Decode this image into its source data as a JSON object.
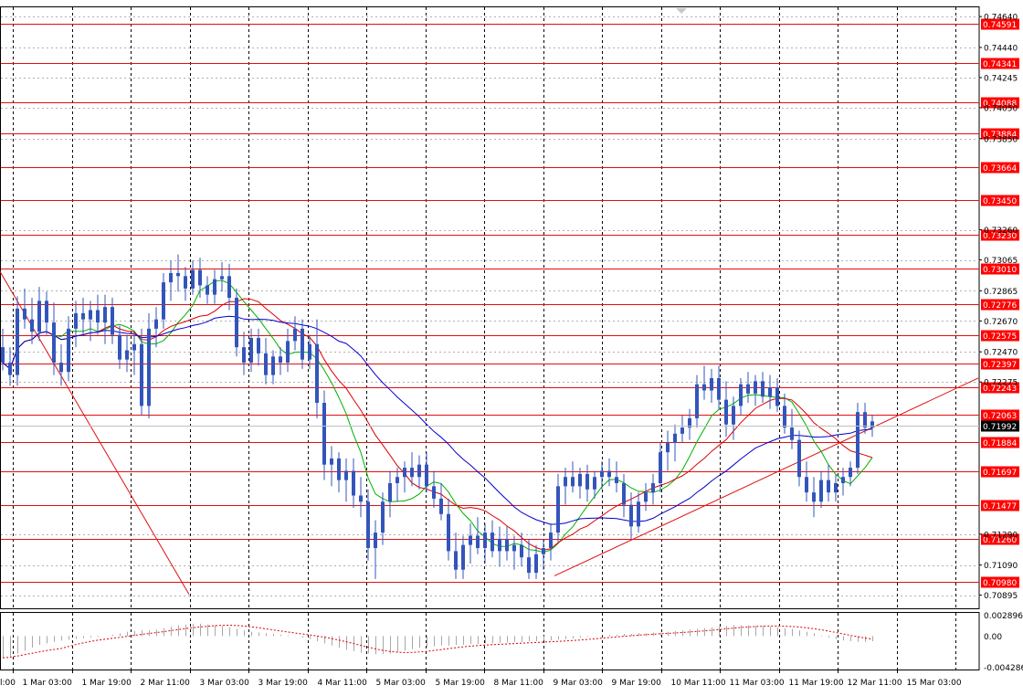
{
  "chart_data": {
    "type": "candlestick",
    "instrument_price_now": "0.71992",
    "grid": true,
    "price_axis": {
      "ylim": [
        0.7081,
        0.747
      ],
      "tick_labels": [
        "0.74640",
        "0.74440",
        "0.74245",
        "0.74050",
        "0.73850",
        "0.73260",
        "0.73065",
        "0.72865",
        "0.72670",
        "0.72470",
        "0.72275",
        "0.71290",
        "0.71090",
        "0.70895"
      ]
    },
    "horizontal_levels": [
      {
        "value": 0.74591,
        "label": "0.74591"
      },
      {
        "value": 0.74341,
        "label": "0.74341"
      },
      {
        "value": 0.74088,
        "label": "0.74088"
      },
      {
        "value": 0.73884,
        "label": "0.73884"
      },
      {
        "value": 0.73664,
        "label": "0.73664"
      },
      {
        "value": 0.7345,
        "label": "0.73450"
      },
      {
        "value": 0.7323,
        "label": "0.73230"
      },
      {
        "value": 0.7301,
        "label": "0.73010"
      },
      {
        "value": 0.72776,
        "label": "0.72776"
      },
      {
        "value": 0.72575,
        "label": "0.72575"
      },
      {
        "value": 0.72397,
        "label": "0.72397"
      },
      {
        "value": 0.72243,
        "label": "0.72243"
      },
      {
        "value": 0.72063,
        "label": "0.72063"
      },
      {
        "value": 0.71884,
        "label": "0.71884"
      },
      {
        "value": 0.71697,
        "label": "0.71697"
      },
      {
        "value": 0.71477,
        "label": "0.71477"
      },
      {
        "value": 0.7126,
        "label": "0.71260"
      },
      {
        "value": 0.7098,
        "label": "0.70980"
      }
    ],
    "time_axis": {
      "labels": [
        "1 Mar 03:00",
        "1 Mar 19:00",
        "2 Mar 11:00",
        "3 Mar 03:00",
        "3 Mar 19:00",
        "4 Mar 11:00",
        "5 Mar 03:00",
        "5 Mar 19:00",
        "8 Mar 11:00",
        "9 Mar 03:00",
        "9 Mar 19:00",
        "10 Mar 11:00",
        "11 Mar 03:00",
        "11 Mar 19:00",
        "12 Mar 11:00",
        "15 Mar 03:00"
      ],
      "first_label_fragment": "l:00"
    },
    "trendlines": [
      {
        "name": "down",
        "from": [
          -0.5,
          0.73
        ],
        "to": [
          25.5,
          0.709
        ]
      },
      {
        "name": "up",
        "from": [
          75.5,
          0.7102
        ],
        "to": [
          133.5,
          0.723
        ]
      }
    ],
    "candles": [
      [
        0.725,
        0.7262,
        0.7235,
        0.724
      ],
      [
        0.724,
        0.725,
        0.7225,
        0.7232
      ],
      [
        0.7232,
        0.7283,
        0.7225,
        0.7275
      ],
      [
        0.7275,
        0.7288,
        0.7262,
        0.7268
      ],
      [
        0.7268,
        0.7282,
        0.7252,
        0.726
      ],
      [
        0.726,
        0.7289,
        0.7254,
        0.728
      ],
      [
        0.728,
        0.7286,
        0.7258,
        0.7266
      ],
      [
        0.7266,
        0.7279,
        0.7232,
        0.724
      ],
      [
        0.724,
        0.7252,
        0.7225,
        0.7234
      ],
      [
        0.7234,
        0.727,
        0.7228,
        0.7262
      ],
      [
        0.7262,
        0.728,
        0.725,
        0.7272
      ],
      [
        0.7272,
        0.7282,
        0.7258,
        0.7268
      ],
      [
        0.7268,
        0.728,
        0.7254,
        0.7274
      ],
      [
        0.7274,
        0.7284,
        0.7258,
        0.7266
      ],
      [
        0.7266,
        0.7284,
        0.7252,
        0.7276
      ],
      [
        0.7276,
        0.7282,
        0.7252,
        0.7258
      ],
      [
        0.7258,
        0.7264,
        0.7236,
        0.7242
      ],
      [
        0.7242,
        0.7258,
        0.7234,
        0.7248
      ],
      [
        0.7248,
        0.726,
        0.7232,
        0.7252
      ],
      [
        0.7252,
        0.7262,
        0.7206,
        0.7212
      ],
      [
        0.7212,
        0.7272,
        0.7204,
        0.7262
      ],
      [
        0.7262,
        0.7276,
        0.725,
        0.7268
      ],
      [
        0.7268,
        0.7298,
        0.7262,
        0.7292
      ],
      [
        0.7292,
        0.7306,
        0.728,
        0.7298
      ],
      [
        0.7298,
        0.731,
        0.7286,
        0.7296
      ],
      [
        0.7296,
        0.7302,
        0.728,
        0.7288
      ],
      [
        0.7288,
        0.7306,
        0.7284,
        0.73
      ],
      [
        0.73,
        0.7308,
        0.7282,
        0.729
      ],
      [
        0.729,
        0.7296,
        0.7278,
        0.7284
      ],
      [
        0.7284,
        0.73,
        0.7278,
        0.7294
      ],
      [
        0.7294,
        0.7305,
        0.7286,
        0.7296
      ],
      [
        0.7296,
        0.7304,
        0.7274,
        0.7282
      ],
      [
        0.7282,
        0.7288,
        0.7244,
        0.725
      ],
      [
        0.725,
        0.726,
        0.7232,
        0.724
      ],
      [
        0.724,
        0.7262,
        0.7234,
        0.7256
      ],
      [
        0.7256,
        0.7262,
        0.7238,
        0.7246
      ],
      [
        0.7246,
        0.7256,
        0.7226,
        0.7232
      ],
      [
        0.7232,
        0.7248,
        0.7226,
        0.7244
      ],
      [
        0.7244,
        0.725,
        0.7232,
        0.724
      ],
      [
        0.724,
        0.7262,
        0.7234,
        0.7254
      ],
      [
        0.7254,
        0.727,
        0.7248,
        0.7262
      ],
      [
        0.7262,
        0.7268,
        0.7236,
        0.7242
      ],
      [
        0.7242,
        0.7258,
        0.7236,
        0.7252
      ],
      [
        0.7252,
        0.7268,
        0.7204,
        0.7214
      ],
      [
        0.7214,
        0.7222,
        0.7164,
        0.7174
      ],
      [
        0.7174,
        0.7186,
        0.716,
        0.7178
      ],
      [
        0.7178,
        0.7182,
        0.7156,
        0.7164
      ],
      [
        0.7164,
        0.7178,
        0.715,
        0.717
      ],
      [
        0.717,
        0.7178,
        0.7146,
        0.7154
      ],
      [
        0.7154,
        0.7166,
        0.714,
        0.715
      ],
      [
        0.715,
        0.7158,
        0.7112,
        0.712
      ],
      [
        0.712,
        0.7138,
        0.71,
        0.713
      ],
      [
        0.713,
        0.7156,
        0.7122,
        0.715
      ],
      [
        0.715,
        0.717,
        0.714,
        0.7162
      ],
      [
        0.7162,
        0.7172,
        0.715,
        0.7166
      ],
      [
        0.7166,
        0.7176,
        0.7156,
        0.7172
      ],
      [
        0.7172,
        0.7182,
        0.716,
        0.7166
      ],
      [
        0.7166,
        0.718,
        0.7158,
        0.7174
      ],
      [
        0.7174,
        0.7182,
        0.7156,
        0.716
      ],
      [
        0.716,
        0.717,
        0.7146,
        0.7152
      ],
      [
        0.7152,
        0.7162,
        0.7138,
        0.7142
      ],
      [
        0.7142,
        0.7152,
        0.7112,
        0.7118
      ],
      [
        0.7118,
        0.713,
        0.71,
        0.7106
      ],
      [
        0.7106,
        0.7128,
        0.71,
        0.7122
      ],
      [
        0.7122,
        0.7136,
        0.711,
        0.7128
      ],
      [
        0.7128,
        0.714,
        0.7116,
        0.712
      ],
      [
        0.712,
        0.7136,
        0.711,
        0.713
      ],
      [
        0.713,
        0.7138,
        0.7114,
        0.7118
      ],
      [
        0.7118,
        0.7134,
        0.7108,
        0.7126
      ],
      [
        0.7126,
        0.7134,
        0.7112,
        0.7118
      ],
      [
        0.7118,
        0.7128,
        0.7106,
        0.7122
      ],
      [
        0.7122,
        0.713,
        0.7108,
        0.7114
      ],
      [
        0.7114,
        0.7126,
        0.71,
        0.7104
      ],
      [
        0.7104,
        0.7122,
        0.71,
        0.7116
      ],
      [
        0.7116,
        0.7126,
        0.7106,
        0.712
      ],
      [
        0.712,
        0.7136,
        0.7112,
        0.713
      ],
      [
        0.713,
        0.7168,
        0.7124,
        0.716
      ],
      [
        0.716,
        0.7172,
        0.7148,
        0.7166
      ],
      [
        0.7166,
        0.7176,
        0.7156,
        0.716
      ],
      [
        0.716,
        0.7172,
        0.7152,
        0.7168
      ],
      [
        0.7168,
        0.7174,
        0.715,
        0.7158
      ],
      [
        0.7158,
        0.717,
        0.7152,
        0.7166
      ],
      [
        0.7166,
        0.7176,
        0.7158,
        0.717
      ],
      [
        0.717,
        0.7178,
        0.716,
        0.7166
      ],
      [
        0.7166,
        0.7176,
        0.7156,
        0.7162
      ],
      [
        0.7162,
        0.7168,
        0.714,
        0.7148
      ],
      [
        0.7148,
        0.7156,
        0.7126,
        0.7134
      ],
      [
        0.7134,
        0.7156,
        0.713,
        0.715
      ],
      [
        0.715,
        0.7162,
        0.7144,
        0.7156
      ],
      [
        0.7156,
        0.7168,
        0.7148,
        0.7162
      ],
      [
        0.7162,
        0.7188,
        0.7156,
        0.7182
      ],
      [
        0.7182,
        0.7196,
        0.717,
        0.7188
      ],
      [
        0.7188,
        0.72,
        0.7176,
        0.7194
      ],
      [
        0.7194,
        0.7206,
        0.7188,
        0.7198
      ],
      [
        0.7198,
        0.721,
        0.719,
        0.7204
      ],
      [
        0.7204,
        0.7232,
        0.7198,
        0.7226
      ],
      [
        0.7226,
        0.7238,
        0.7216,
        0.7222
      ],
      [
        0.7222,
        0.7236,
        0.7214,
        0.723
      ],
      [
        0.723,
        0.7238,
        0.721,
        0.7216
      ],
      [
        0.7216,
        0.7228,
        0.7192,
        0.72
      ],
      [
        0.72,
        0.7218,
        0.719,
        0.7212
      ],
      [
        0.7212,
        0.723,
        0.7206,
        0.7226
      ],
      [
        0.7226,
        0.7234,
        0.7214,
        0.722
      ],
      [
        0.722,
        0.7232,
        0.7212,
        0.7228
      ],
      [
        0.7228,
        0.7234,
        0.7214,
        0.7218
      ],
      [
        0.7218,
        0.7232,
        0.721,
        0.7224
      ],
      [
        0.7224,
        0.723,
        0.7208,
        0.7212
      ],
      [
        0.7212,
        0.722,
        0.7194,
        0.7198
      ],
      [
        0.7198,
        0.721,
        0.7184,
        0.719
      ],
      [
        0.719,
        0.7196,
        0.716,
        0.7166
      ],
      [
        0.7166,
        0.7176,
        0.715,
        0.7156
      ],
      [
        0.7156,
        0.7166,
        0.714,
        0.715
      ],
      [
        0.715,
        0.717,
        0.7146,
        0.7164
      ],
      [
        0.7164,
        0.7174,
        0.715,
        0.7156
      ],
      [
        0.7156,
        0.7168,
        0.715,
        0.7162
      ],
      [
        0.7162,
        0.7172,
        0.7154,
        0.7166
      ],
      [
        0.7166,
        0.7176,
        0.716,
        0.7172
      ],
      [
        0.7172,
        0.7214,
        0.7168,
        0.7208
      ],
      [
        0.7208,
        0.7214,
        0.7194,
        0.7198
      ],
      [
        0.7198,
        0.7206,
        0.7192,
        0.7202
      ]
    ],
    "moving_averages": [
      {
        "color": "#00b000",
        "period": 8
      },
      {
        "color": "#dd0000",
        "period": 14
      },
      {
        "color": "#0000cc",
        "period": 28
      }
    ],
    "oscillator": {
      "tick_labels": [
        "0.002896",
        "0.00",
        "-0.004286"
      ],
      "ylim": [
        -0.0046,
        0.0032
      ],
      "histogram": [
        -0.003,
        -0.0028,
        -0.0024,
        -0.002,
        -0.0016,
        -0.0012,
        -0.001,
        -0.0008,
        -0.0006,
        -0.0005,
        -0.0004,
        -0.0003,
        -0.0002,
        -0.0001,
        0.0,
        0.0002,
        0.0004,
        0.0006,
        0.0007,
        0.0008,
        0.0008,
        0.0009,
        0.0011,
        0.0013,
        0.0015,
        0.0016,
        0.0017,
        0.0017,
        0.0016,
        0.0015,
        0.0014,
        0.0012,
        0.001,
        0.0008,
        0.0006,
        0.0005,
        0.0004,
        0.0003,
        0.0002,
        0.0001,
        0.0,
        -0.0002,
        -0.0004,
        -0.0007,
        -0.001,
        -0.0013,
        -0.0016,
        -0.0019,
        -0.0021,
        -0.0023,
        -0.0024,
        -0.0025,
        -0.0025,
        -0.0024,
        -0.0022,
        -0.002,
        -0.0018,
        -0.0016,
        -0.0015,
        -0.0014,
        -0.0013,
        -0.0013,
        -0.0012,
        -0.0012,
        -0.0011,
        -0.0011,
        -0.001,
        -0.001,
        -0.0009,
        -0.0009,
        -0.0008,
        -0.0008,
        -0.0007,
        -0.0007,
        -0.0006,
        -0.0006,
        -0.0005,
        -0.0004,
        -0.0003,
        -0.0002,
        -0.0001,
        0.0,
        0.0001,
        0.0002,
        0.0002,
        0.0003,
        0.0003,
        0.0004,
        0.0004,
        0.0005,
        0.0005,
        0.0006,
        0.0007,
        0.0008,
        0.0009,
        0.001,
        0.0011,
        0.0012,
        0.0013,
        0.0014,
        0.0015,
        0.0015,
        0.0015,
        0.0014,
        0.0014,
        0.0013,
        0.0012,
        0.0011,
        0.001,
        0.0008,
        0.0006,
        0.0004,
        0.0001,
        -0.0002,
        -0.0004,
        -0.0006,
        -0.0007,
        -0.0008,
        -0.0008,
        -0.0007
      ]
    }
  }
}
